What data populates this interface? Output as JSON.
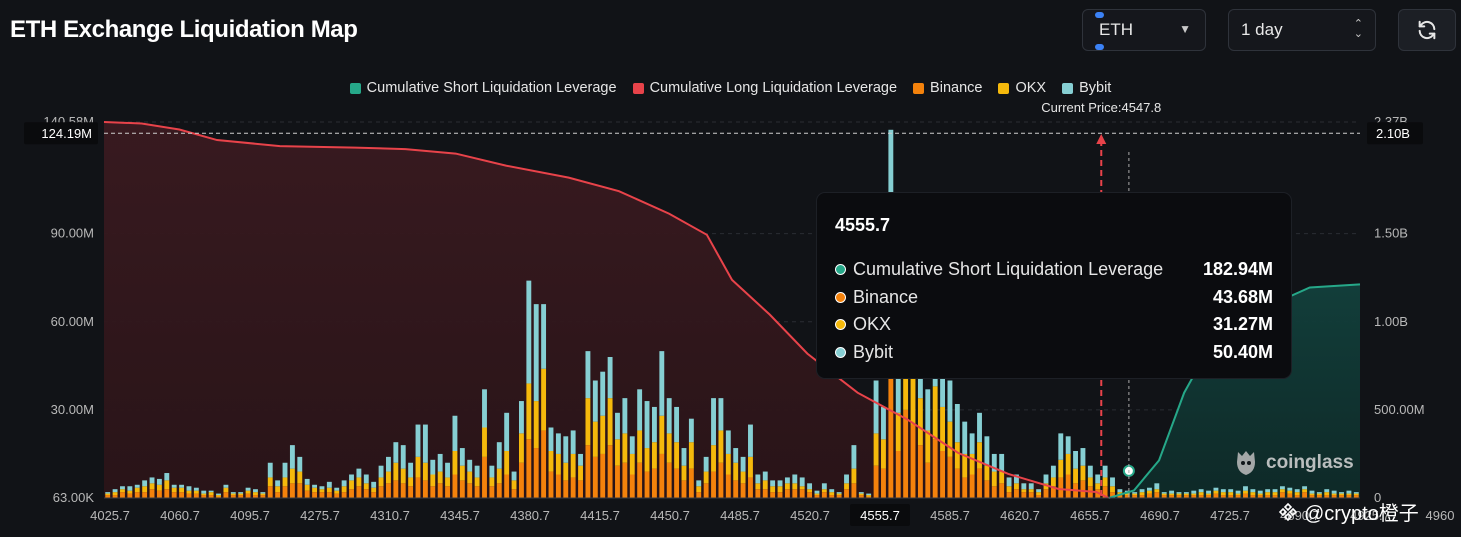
{
  "title": "ETH Exchange Liquidation Map",
  "controls": {
    "asset": "ETH",
    "timeframe": "1 day"
  },
  "legend": [
    {
      "label": "Cumulative Short Liquidation Leverage",
      "color": "#26a889"
    },
    {
      "label": "Cumulative Long Liquidation Leverage",
      "color": "#e8434a"
    },
    {
      "label": "Binance",
      "color": "#f4820c"
    },
    {
      "label": "OKX",
      "color": "#f5b90c"
    },
    {
      "label": "Bybit",
      "color": "#86cfd3"
    }
  ],
  "current_price_label": "Current Price:4547.8",
  "tooltip": {
    "title": "4555.7",
    "rows": [
      {
        "label": "Cumulative Short Liquidation Leverage",
        "value": "182.94M",
        "color": "#26a889"
      },
      {
        "label": "Binance",
        "value": "43.68M",
        "color": "#f4820c"
      },
      {
        "label": "OKX",
        "value": "31.27M",
        "color": "#f5b90c"
      },
      {
        "label": "Bybit",
        "value": "50.40M",
        "color": "#86cfd3"
      }
    ]
  },
  "watermark": "coinglass",
  "credit": "@crypto橙子",
  "chart_data": {
    "type": "bar",
    "stacked": true,
    "title": "ETH Exchange Liquidation Map",
    "current_price": 4547.8,
    "x_tick_labels": [
      "4025.7",
      "4060.7",
      "4095.7",
      "4275.7",
      "4310.7",
      "4345.7",
      "4380.7",
      "4415.7",
      "4450.7",
      "4485.7",
      "4520.7",
      "4555.7",
      "4585.7",
      "4620.7",
      "4655.7",
      "4690.7",
      "4725.7",
      "4890.7",
      "4925.7",
      "4960"
    ],
    "y_left_ticks": [
      "63.00K",
      "30.00M",
      "60.00M",
      "90.00M",
      "140.58M"
    ],
    "y_left_highlight": "124.19M",
    "y_left_range": [
      0,
      128
    ],
    "y_right_ticks": [
      "0",
      "500.00M",
      "1.00B",
      "1.50B",
      "2.37B"
    ],
    "y_right_highlight": "2.10B",
    "y_right_range": [
      0,
      2.5
    ],
    "units_left": "M",
    "units_right": "B",
    "series_names": [
      "Binance",
      "OKX",
      "Bybit"
    ],
    "bars": [
      [
        1,
        0.5,
        0.5
      ],
      [
        1,
        1,
        1
      ],
      [
        2,
        1,
        1
      ],
      [
        1.5,
        1,
        1.5
      ],
      [
        2,
        1.5,
        1
      ],
      [
        2,
        2,
        2
      ],
      [
        3,
        2,
        2
      ],
      [
        2.5,
        2,
        2
      ],
      [
        3,
        3,
        2.5
      ],
      [
        2,
        1.5,
        1
      ],
      [
        2,
        1.5,
        1
      ],
      [
        1.5,
        1,
        1.5
      ],
      [
        1.5,
        1,
        1
      ],
      [
        1,
        0.5,
        1
      ],
      [
        1,
        1,
        0.5
      ],
      [
        0.5,
        0.5,
        0.5
      ],
      [
        2,
        1.5,
        1
      ],
      [
        1,
        0.5,
        0.5
      ],
      [
        1,
        0.5,
        0.5
      ],
      [
        1.5,
        1,
        1
      ],
      [
        1,
        1,
        1
      ],
      [
        1,
        0.5,
        0.5
      ],
      [
        4,
        3,
        5
      ],
      [
        2,
        2,
        2
      ],
      [
        4,
        3,
        5
      ],
      [
        5,
        5,
        8
      ],
      [
        5,
        4,
        5
      ],
      [
        2.5,
        2,
        2
      ],
      [
        2,
        1.5,
        1
      ],
      [
        2,
        1,
        1
      ],
      [
        2,
        1.5,
        2
      ],
      [
        1.5,
        1,
        1
      ],
      [
        2,
        2,
        2
      ],
      [
        3,
        3,
        2
      ],
      [
        4,
        3,
        3
      ],
      [
        3,
        2,
        3
      ],
      [
        2,
        1.5,
        2
      ],
      [
        4,
        3,
        4
      ],
      [
        5,
        4,
        5
      ],
      [
        6,
        6,
        7
      ],
      [
        5,
        5,
        8
      ],
      [
        4,
        3,
        5
      ],
      [
        7,
        7,
        11
      ],
      [
        6,
        6,
        13
      ],
      [
        4,
        4,
        5
      ],
      [
        5,
        4,
        6
      ],
      [
        4,
        3,
        5
      ],
      [
        8,
        8,
        12
      ],
      [
        6,
        5,
        6
      ],
      [
        5,
        4,
        4
      ],
      [
        4,
        3,
        4
      ],
      [
        14,
        10,
        13
      ],
      [
        4,
        3,
        4
      ],
      [
        5,
        5,
        9
      ],
      [
        8,
        8,
        13
      ],
      [
        3,
        3,
        3
      ],
      [
        12,
        10,
        11
      ],
      [
        20,
        19,
        35
      ],
      [
        17,
        16,
        33
      ],
      [
        23,
        21,
        22
      ],
      [
        9,
        7,
        8
      ],
      [
        8,
        7,
        7
      ],
      [
        6,
        6,
        9
      ],
      [
        7,
        8,
        8
      ],
      [
        6,
        5,
        4
      ],
      [
        18,
        16,
        16
      ],
      [
        14,
        12,
        14
      ],
      [
        15,
        13,
        15
      ],
      [
        18,
        16,
        14
      ],
      [
        11,
        9,
        9
      ],
      [
        12,
        10,
        12
      ],
      [
        8,
        7,
        6
      ],
      [
        12,
        11,
        14
      ],
      [
        9,
        8,
        16
      ],
      [
        10,
        9,
        12
      ],
      [
        15,
        13,
        22
      ],
      [
        12,
        10,
        12
      ],
      [
        10,
        9,
        12
      ],
      [
        6,
        5,
        6
      ],
      [
        10,
        9,
        8
      ],
      [
        2,
        2,
        2
      ],
      [
        5,
        4,
        5
      ],
      [
        9,
        9,
        16
      ],
      [
        12,
        11,
        11
      ],
      [
        8,
        7,
        8
      ],
      [
        6,
        6,
        5
      ],
      [
        5,
        4,
        5
      ],
      [
        7,
        7,
        11
      ],
      [
        3,
        2,
        3
      ],
      [
        3,
        3,
        3
      ],
      [
        2,
        2,
        2
      ],
      [
        2,
        2,
        2
      ],
      [
        3,
        2,
        2
      ],
      [
        3,
        2,
        3
      ],
      [
        3,
        1,
        3
      ],
      [
        2,
        1,
        2
      ],
      [
        1,
        0.5,
        1
      ],
      [
        2,
        1,
        2
      ],
      [
        1,
        1,
        1
      ],
      [
        1,
        0.5,
        0.5
      ],
      [
        3,
        2,
        3
      ],
      [
        5,
        5,
        8
      ],
      [
        1,
        0.5,
        0.5
      ],
      [
        0.5,
        0.5,
        0.5
      ],
      [
        11,
        11,
        18
      ],
      [
        10,
        10,
        11
      ],
      [
        43.68,
        31.27,
        50.4
      ],
      [
        16,
        13,
        14
      ],
      [
        30,
        30,
        40
      ],
      [
        25,
        25,
        40
      ],
      [
        18,
        16,
        14
      ],
      [
        12,
        11,
        14
      ],
      [
        20,
        18,
        23
      ],
      [
        16,
        15,
        14
      ],
      [
        14,
        12,
        14
      ],
      [
        10,
        9,
        13
      ],
      [
        7,
        8,
        11
      ],
      [
        8,
        7,
        7
      ],
      [
        10,
        9,
        10
      ],
      [
        6,
        5,
        10
      ],
      [
        4,
        5,
        6
      ],
      [
        5,
        4,
        6
      ],
      [
        2,
        2,
        3
      ],
      [
        3,
        2,
        3
      ],
      [
        2,
        1,
        2
      ],
      [
        2,
        1,
        2
      ],
      [
        1,
        1,
        1
      ],
      [
        3,
        2,
        3
      ],
      [
        4,
        3,
        4
      ],
      [
        7,
        6,
        9
      ],
      [
        8,
        7,
        6
      ],
      [
        5,
        5,
        6
      ],
      [
        6,
        5,
        6
      ],
      [
        4,
        3,
        4
      ],
      [
        3,
        2,
        3
      ],
      [
        4,
        3,
        4
      ],
      [
        2,
        2,
        3
      ],
      [
        1,
        1,
        1
      ],
      [
        1,
        0.5,
        1
      ],
      [
        1,
        0.5,
        0.5
      ],
      [
        1,
        1,
        1
      ],
      [
        1.5,
        1,
        1
      ],
      [
        2,
        1,
        2
      ],
      [
        1,
        0.5,
        0.5
      ],
      [
        1,
        0.5,
        1
      ],
      [
        1,
        0.5,
        0.5
      ],
      [
        1,
        0.5,
        0.5
      ],
      [
        1,
        0.5,
        1
      ],
      [
        1,
        1,
        1
      ],
      [
        1,
        0.5,
        1
      ],
      [
        1.5,
        1,
        1
      ],
      [
        1,
        1,
        1
      ],
      [
        1,
        1,
        1
      ],
      [
        1,
        0.5,
        1
      ],
      [
        1.5,
        1,
        1.5
      ],
      [
        1,
        1,
        1
      ],
      [
        1,
        0.5,
        1
      ],
      [
        1,
        1,
        1
      ],
      [
        1,
        1,
        1
      ],
      [
        2,
        1,
        1
      ],
      [
        1.5,
        1,
        1
      ],
      [
        1,
        1,
        1
      ],
      [
        2,
        1,
        1
      ],
      [
        1,
        0.5,
        1
      ],
      [
        1,
        0.5,
        0.5
      ],
      [
        1,
        1,
        1
      ],
      [
        1,
        0.5,
        1
      ],
      [
        1,
        0.5,
        0.5
      ],
      [
        1,
        0.5,
        1
      ],
      [
        1,
        0.5,
        0.5
      ]
    ],
    "long_cumulative_B": [
      [
        0,
        2.5
      ],
      [
        0.03,
        2.49
      ],
      [
        0.06,
        2.45
      ],
      [
        0.09,
        2.38
      ],
      [
        0.14,
        2.34
      ],
      [
        0.2,
        2.33
      ],
      [
        0.24,
        2.32
      ],
      [
        0.28,
        2.29
      ],
      [
        0.32,
        2.21
      ],
      [
        0.37,
        2.13
      ],
      [
        0.41,
        2.04
      ],
      [
        0.45,
        1.89
      ],
      [
        0.48,
        1.75
      ],
      [
        0.5,
        1.45
      ],
      [
        0.53,
        1.22
      ],
      [
        0.56,
        0.96
      ],
      [
        0.6,
        0.7
      ],
      [
        0.64,
        0.52
      ],
      [
        0.68,
        0.3
      ],
      [
        0.72,
        0.16
      ],
      [
        0.76,
        0.06
      ],
      [
        0.79,
        0.04
      ],
      [
        0.8,
        0.0
      ]
    ],
    "short_cumulative_B": [
      [
        0.8,
        0.0
      ],
      [
        0.82,
        0.05
      ],
      [
        0.84,
        0.25
      ],
      [
        0.86,
        0.7
      ],
      [
        0.88,
        1.0
      ],
      [
        0.92,
        1.25
      ],
      [
        0.96,
        1.4
      ],
      [
        1.0,
        1.42
      ]
    ]
  }
}
